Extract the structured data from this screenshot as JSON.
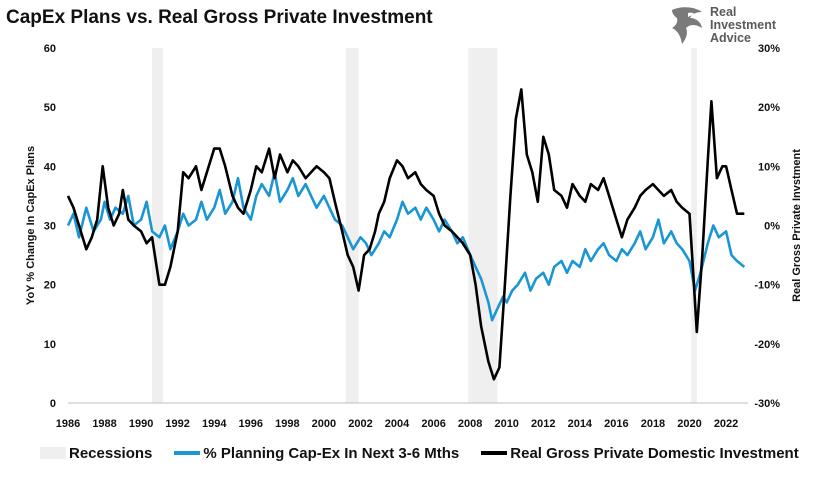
{
  "title": "CapEx Plans vs. Real Gross Private Investment",
  "logo": {
    "line1": "Real",
    "line2": "Investment",
    "line3": "Advice",
    "icon": "eagle-icon"
  },
  "colors": {
    "capex": "#1a96d4",
    "investment": "#000000",
    "recession": "#efefef"
  },
  "legend": [
    {
      "key": "recessions",
      "label": "Recessions"
    },
    {
      "key": "capex",
      "label": "% Planning Cap-Ex In Next 3-6 Mths"
    },
    {
      "key": "investment",
      "label": "Real Gross Private Domestic Investment"
    }
  ],
  "chart_data": {
    "type": "line",
    "title": "CapEx Plans vs. Real Gross Private Investment",
    "x_range": [
      1986,
      2023.2
    ],
    "x_ticks": [
      "1986",
      "1988",
      "1990",
      "1992",
      "1994",
      "1996",
      "1998",
      "2000",
      "2002",
      "2004",
      "2006",
      "2008",
      "2010",
      "2012",
      "2014",
      "2016",
      "2018",
      "2020",
      "2022"
    ],
    "y_left": {
      "label": "YoY % Change In CapEx Plans",
      "min": 0,
      "max": 60,
      "ticks": [
        "0",
        "10",
        "20",
        "30",
        "40",
        "50",
        "60"
      ]
    },
    "y_right": {
      "label": "Real Gross Private Invstment",
      "min": -30,
      "max": 30,
      "ticks": [
        "-30%",
        "-20%",
        "-10%",
        "0%",
        "10%",
        "20%",
        "30%"
      ]
    },
    "recessions": [
      [
        1990.6,
        1991.2
      ],
      [
        2001.2,
        2001.9
      ],
      [
        2007.9,
        2009.5
      ],
      [
        2020.1,
        2020.4
      ]
    ],
    "series": [
      {
        "name": "% Planning Cap-Ex In Next 3-6 Mths",
        "axis": "left",
        "points": [
          [
            1986,
            30
          ],
          [
            1986.3,
            32
          ],
          [
            1986.6,
            28
          ],
          [
            1987,
            33
          ],
          [
            1987.4,
            29
          ],
          [
            1987.8,
            31
          ],
          [
            1988,
            34
          ],
          [
            1988.3,
            31
          ],
          [
            1988.6,
            33
          ],
          [
            1989,
            32
          ],
          [
            1989.3,
            35
          ],
          [
            1989.6,
            30
          ],
          [
            1990,
            31
          ],
          [
            1990.3,
            34
          ],
          [
            1990.6,
            29
          ],
          [
            1991,
            28
          ],
          [
            1991.3,
            30
          ],
          [
            1991.6,
            26
          ],
          [
            1992,
            29
          ],
          [
            1992.3,
            32
          ],
          [
            1992.6,
            30
          ],
          [
            1993,
            31
          ],
          [
            1993.3,
            34
          ],
          [
            1993.6,
            31
          ],
          [
            1994,
            33
          ],
          [
            1994.3,
            36
          ],
          [
            1994.6,
            32
          ],
          [
            1995,
            34
          ],
          [
            1995.3,
            38
          ],
          [
            1995.6,
            33
          ],
          [
            1996,
            31
          ],
          [
            1996.3,
            35
          ],
          [
            1996.6,
            37
          ],
          [
            1997,
            35
          ],
          [
            1997.3,
            39
          ],
          [
            1997.6,
            34
          ],
          [
            1998,
            36
          ],
          [
            1998.3,
            38
          ],
          [
            1998.6,
            35
          ],
          [
            1999,
            37
          ],
          [
            1999.3,
            35
          ],
          [
            1999.6,
            33
          ],
          [
            2000,
            35
          ],
          [
            2000.3,
            33
          ],
          [
            2000.6,
            31
          ],
          [
            2001,
            30
          ],
          [
            2001.3,
            28
          ],
          [
            2001.6,
            26
          ],
          [
            2002,
            28
          ],
          [
            2002.3,
            27
          ],
          [
            2002.6,
            25
          ],
          [
            2003,
            27
          ],
          [
            2003.3,
            29
          ],
          [
            2003.6,
            28
          ],
          [
            2004,
            31
          ],
          [
            2004.3,
            34
          ],
          [
            2004.6,
            32
          ],
          [
            2005,
            33
          ],
          [
            2005.3,
            31
          ],
          [
            2005.6,
            33
          ],
          [
            2006,
            31
          ],
          [
            2006.3,
            29
          ],
          [
            2006.6,
            31
          ],
          [
            2007,
            29
          ],
          [
            2007.3,
            27
          ],
          [
            2007.6,
            28
          ],
          [
            2008,
            25
          ],
          [
            2008.3,
            23
          ],
          [
            2008.6,
            21
          ],
          [
            2009,
            17
          ],
          [
            2009.2,
            14
          ],
          [
            2009.5,
            16
          ],
          [
            2009.8,
            18
          ],
          [
            2010,
            17
          ],
          [
            2010.3,
            19
          ],
          [
            2010.6,
            20
          ],
          [
            2011,
            22
          ],
          [
            2011.3,
            19
          ],
          [
            2011.6,
            21
          ],
          [
            2012,
            22
          ],
          [
            2012.3,
            20
          ],
          [
            2012.6,
            23
          ],
          [
            2013,
            24
          ],
          [
            2013.3,
            22
          ],
          [
            2013.6,
            24
          ],
          [
            2014,
            23
          ],
          [
            2014.3,
            26
          ],
          [
            2014.6,
            24
          ],
          [
            2015,
            26
          ],
          [
            2015.3,
            27
          ],
          [
            2015.6,
            25
          ],
          [
            2016,
            24
          ],
          [
            2016.3,
            26
          ],
          [
            2016.6,
            25
          ],
          [
            2017,
            27
          ],
          [
            2017.3,
            29
          ],
          [
            2017.6,
            26
          ],
          [
            2018,
            28
          ],
          [
            2018.3,
            31
          ],
          [
            2018.6,
            27
          ],
          [
            2019,
            29
          ],
          [
            2019.3,
            27
          ],
          [
            2019.6,
            26
          ],
          [
            2020,
            24
          ],
          [
            2020.3,
            19
          ],
          [
            2020.6,
            22
          ],
          [
            2021,
            27
          ],
          [
            2021.3,
            30
          ],
          [
            2021.6,
            28
          ],
          [
            2022,
            29
          ],
          [
            2022.3,
            25
          ],
          [
            2022.6,
            24
          ],
          [
            2023,
            23
          ]
        ]
      },
      {
        "name": "Real Gross Private Domestic Investment",
        "axis": "right",
        "points": [
          [
            1986,
            5
          ],
          [
            1986.3,
            3
          ],
          [
            1986.6,
            0
          ],
          [
            1987,
            -4
          ],
          [
            1987.3,
            -2
          ],
          [
            1987.6,
            1
          ],
          [
            1987.9,
            10
          ],
          [
            1988.2,
            3
          ],
          [
            1988.5,
            0
          ],
          [
            1988.8,
            2
          ],
          [
            1989,
            6
          ],
          [
            1989.3,
            1
          ],
          [
            1989.6,
            0
          ],
          [
            1990,
            -1
          ],
          [
            1990.3,
            -3
          ],
          [
            1990.6,
            -2
          ],
          [
            1991,
            -10
          ],
          [
            1991.3,
            -10
          ],
          [
            1991.6,
            -7
          ],
          [
            1992,
            -1
          ],
          [
            1992.3,
            9
          ],
          [
            1992.6,
            8
          ],
          [
            1993,
            10
          ],
          [
            1993.3,
            6
          ],
          [
            1993.6,
            9
          ],
          [
            1994,
            13
          ],
          [
            1994.3,
            13
          ],
          [
            1994.6,
            10
          ],
          [
            1995,
            5
          ],
          [
            1995.3,
            3
          ],
          [
            1995.6,
            2
          ],
          [
            1996,
            6
          ],
          [
            1996.3,
            10
          ],
          [
            1996.6,
            9
          ],
          [
            1997,
            13
          ],
          [
            1997.3,
            8
          ],
          [
            1997.6,
            12
          ],
          [
            1998,
            9
          ],
          [
            1998.3,
            11
          ],
          [
            1998.6,
            10
          ],
          [
            1999,
            8
          ],
          [
            1999.3,
            9
          ],
          [
            1999.6,
            10
          ],
          [
            2000,
            9
          ],
          [
            2000.3,
            8
          ],
          [
            2000.6,
            4
          ],
          [
            2001,
            -1
          ],
          [
            2001.3,
            -5
          ],
          [
            2001.6,
            -7
          ],
          [
            2001.9,
            -11
          ],
          [
            2002.2,
            -5
          ],
          [
            2002.5,
            -4
          ],
          [
            2002.8,
            -1
          ],
          [
            2003,
            2
          ],
          [
            2003.3,
            4
          ],
          [
            2003.6,
            8
          ],
          [
            2004,
            11
          ],
          [
            2004.3,
            10
          ],
          [
            2004.6,
            8
          ],
          [
            2005,
            9
          ],
          [
            2005.3,
            7
          ],
          [
            2005.6,
            6
          ],
          [
            2006,
            5
          ],
          [
            2006.3,
            2
          ],
          [
            2006.6,
            0
          ],
          [
            2007,
            -1
          ],
          [
            2007.3,
            -2
          ],
          [
            2007.6,
            -3
          ],
          [
            2008,
            -5
          ],
          [
            2008.3,
            -10
          ],
          [
            2008.6,
            -17
          ],
          [
            2009,
            -23
          ],
          [
            2009.3,
            -26
          ],
          [
            2009.6,
            -24
          ],
          [
            2009.9,
            -10
          ],
          [
            2010.2,
            5
          ],
          [
            2010.5,
            18
          ],
          [
            2010.8,
            23
          ],
          [
            2011.1,
            12
          ],
          [
            2011.4,
            9
          ],
          [
            2011.7,
            4
          ],
          [
            2012,
            15
          ],
          [
            2012.3,
            12
          ],
          [
            2012.6,
            6
          ],
          [
            2013,
            5
          ],
          [
            2013.3,
            3
          ],
          [
            2013.6,
            7
          ],
          [
            2014,
            5
          ],
          [
            2014.3,
            4
          ],
          [
            2014.6,
            7
          ],
          [
            2015,
            6
          ],
          [
            2015.3,
            8
          ],
          [
            2015.6,
            5
          ],
          [
            2016,
            1
          ],
          [
            2016.3,
            -2
          ],
          [
            2016.6,
            1
          ],
          [
            2017,
            3
          ],
          [
            2017.3,
            5
          ],
          [
            2017.6,
            6
          ],
          [
            2018,
            7
          ],
          [
            2018.3,
            6
          ],
          [
            2018.6,
            5
          ],
          [
            2019,
            6
          ],
          [
            2019.3,
            4
          ],
          [
            2019.6,
            3
          ],
          [
            2020,
            2
          ],
          [
            2020.2,
            -8
          ],
          [
            2020.4,
            -18
          ],
          [
            2020.7,
            -5
          ],
          [
            2021,
            11
          ],
          [
            2021.2,
            21
          ],
          [
            2021.5,
            8
          ],
          [
            2021.8,
            10
          ],
          [
            2022,
            10
          ],
          [
            2022.3,
            6
          ],
          [
            2022.6,
            2
          ],
          [
            2023,
            2
          ]
        ]
      }
    ]
  }
}
